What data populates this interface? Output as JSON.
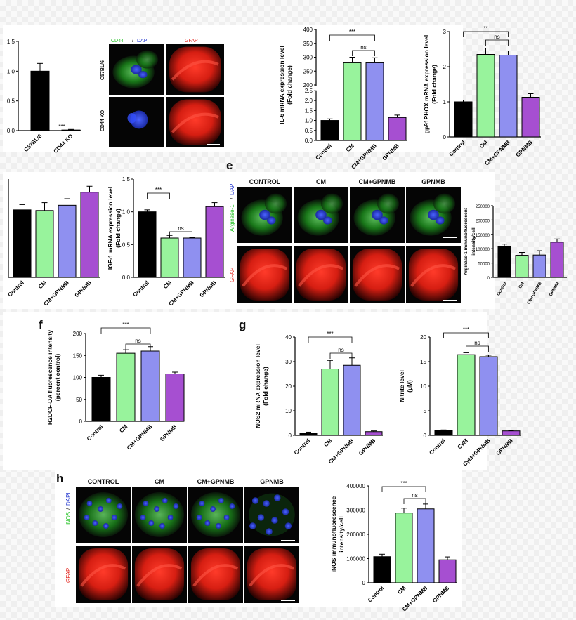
{
  "figure": {
    "panel_letters": {
      "e": "e",
      "f": "f",
      "g": "g",
      "h": "h"
    },
    "micro_a": {
      "channel_title_1": "CD44",
      "channel_title_sep": "/",
      "channel_title_2": "DAPI",
      "channel_title_3": "GFAP",
      "row_labels": [
        "C57BL/6",
        "CD44 KO"
      ]
    },
    "micro_e": {
      "col_labels": [
        "CONTROL",
        "CM",
        "CM+GPNMB",
        "GPNMB"
      ],
      "row_label_1a": "Arginase-1",
      "row_label_1b": "/",
      "row_label_1c": "DAPI",
      "row_label_2": "GFAP"
    },
    "micro_h": {
      "col_labels": [
        "CONTROL",
        "CM",
        "CM+GPNMB",
        "GPNMB"
      ],
      "row_label_1a": "iNOS",
      "row_label_1b": "/",
      "row_label_1c": "DAPI",
      "row_label_2": "GFAP"
    },
    "colors": {
      "black": "#000000",
      "green": "#98f39c",
      "blue": "#8f90f0",
      "purple": "#a64fd1",
      "red": "#e3231b",
      "cd44": "#1ec11e",
      "dapi": "#2a3dd1"
    }
  },
  "chart_data": [
    {
      "id": "cd44",
      "type": "bar",
      "categories": [
        "C57BL/6",
        "CD44 KO"
      ],
      "values": [
        1.0,
        0.01
      ],
      "errors": [
        0.13,
        0.01
      ],
      "ylim": [
        0,
        1.5
      ],
      "yticks": [
        "0.0",
        "0.5",
        "1.0",
        "1.5"
      ],
      "ylabel": "",
      "annotations": [
        "***"
      ]
    },
    {
      "id": "il6",
      "type": "bar",
      "categories": [
        "Control",
        "CM",
        "CM+GPNMB",
        "GPNMB"
      ],
      "values": [
        1.0,
        280,
        280,
        1.15
      ],
      "errors": [
        0.08,
        20,
        18,
        0.12
      ],
      "ylim": [
        0,
        400
      ],
      "axis_break": true,
      "yticks": [
        "0.0",
        "0.5",
        "1.0",
        "1.5",
        "2.0",
        "2.5",
        "200",
        "250",
        "300",
        "350",
        "400"
      ],
      "ylabel": "IL-6 mRNA expression level",
      "ylabel2": "(Fold change)",
      "annotations": [
        "***",
        "ns"
      ]
    },
    {
      "id": "gp91",
      "type": "bar",
      "categories": [
        "Control",
        "CM",
        "CM+GPNMB",
        "GPNMB"
      ],
      "values": [
        1.0,
        2.35,
        2.33,
        1.13
      ],
      "errors": [
        0.05,
        0.18,
        0.12,
        0.1
      ],
      "ylim": [
        0,
        3
      ],
      "yticks": [
        "0",
        "1",
        "2",
        "3"
      ],
      "ylabel": "gp91PHOX mRNA expression level",
      "ylabel2": "(Fold change)",
      "annotations": [
        "**",
        "ns"
      ]
    },
    {
      "id": "left_mid",
      "type": "bar",
      "categories": [
        "Control",
        "CM",
        "CM+GPNMB",
        "GPNMB"
      ],
      "values": [
        1.03,
        1.02,
        1.1,
        1.3
      ],
      "errors": [
        0.08,
        0.12,
        0.1,
        0.09
      ],
      "ylim": [
        0,
        1.5
      ],
      "yticks": [],
      "ylabel": "",
      "annotations": []
    },
    {
      "id": "igf1",
      "type": "bar",
      "categories": [
        "Control",
        "CM",
        "CM+GPNMB",
        "GPNMB"
      ],
      "values": [
        1.0,
        0.6,
        0.6,
        1.08
      ],
      "errors": [
        0.03,
        0.04,
        0.01,
        0.06
      ],
      "ylim": [
        0,
        1.5
      ],
      "yticks": [
        "0.0",
        "0.5",
        "1.0",
        "1.5"
      ],
      "ylabel": "IGF-1 mRNA expression level",
      "ylabel2": "(Fold change)",
      "annotations": [
        "***",
        "ns"
      ]
    },
    {
      "id": "arg1",
      "type": "bar",
      "categories": [
        "Control",
        "CM",
        "CM+GPNMB",
        "GPNMB"
      ],
      "values": [
        107000,
        77000,
        78000,
        123000
      ],
      "errors": [
        9000,
        10000,
        15000,
        11000
      ],
      "ylim": [
        0,
        250000
      ],
      "yticks": [
        "0",
        "50000",
        "100000",
        "150000",
        "200000",
        "250000"
      ],
      "ylabel": "Arginase-1 immunofluorescent",
      "ylabel2": "intensity/cell",
      "annotations": []
    },
    {
      "id": "h2dcf",
      "type": "bar",
      "categories": [
        "Control",
        "CM",
        "CM+GPNMB",
        "GPNMB"
      ],
      "values": [
        100,
        155,
        160,
        108
      ],
      "errors": [
        5,
        8,
        10,
        4
      ],
      "ylim": [
        0,
        200
      ],
      "yticks": [
        "0",
        "50",
        "100",
        "150",
        "200"
      ],
      "ylabel": "H2DCF-DA fluorescence intensity",
      "ylabel2": "(percent control)",
      "annotations": [
        "***",
        "ns"
      ]
    },
    {
      "id": "nos2",
      "type": "bar",
      "categories": [
        "Control",
        "CM",
        "CM+GPNMB",
        "GPNMB"
      ],
      "values": [
        1.0,
        27,
        28.5,
        1.5
      ],
      "errors": [
        0.3,
        3.5,
        3,
        0.3
      ],
      "ylim": [
        0,
        40
      ],
      "yticks": [
        "0",
        "10",
        "20",
        "30",
        "40"
      ],
      "ylabel": "NOS2 mRNA expression level",
      "ylabel2": "(Fold change)",
      "annotations": [
        "***",
        "ns"
      ]
    },
    {
      "id": "nitrite",
      "type": "bar",
      "categories": [
        "Control",
        "CyM",
        "CyM+GPNMB",
        "GPNMB"
      ],
      "values": [
        1.0,
        16.4,
        16.0,
        0.9
      ],
      "errors": [
        0.1,
        0.4,
        0.3,
        0.1
      ],
      "ylim": [
        0,
        20
      ],
      "yticks": [
        "0",
        "5",
        "10",
        "15",
        "20"
      ],
      "ylabel": "Nitrite level",
      "ylabel2": "(µM)",
      "annotations": [
        "***",
        "ns"
      ]
    },
    {
      "id": "inos",
      "type": "bar",
      "categories": [
        "Control",
        "CM",
        "CM+GPNMB",
        "GPNMB"
      ],
      "values": [
        108000,
        288000,
        305000,
        95000
      ],
      "errors": [
        10000,
        20000,
        20000,
        12000
      ],
      "ylim": [
        0,
        400000
      ],
      "yticks": [
        "0",
        "100000",
        "200000",
        "300000",
        "400000"
      ],
      "ylabel": "iNOS immunofluorescence",
      "ylabel2": "intensity/cell",
      "annotations": [
        "***",
        "ns"
      ]
    }
  ]
}
